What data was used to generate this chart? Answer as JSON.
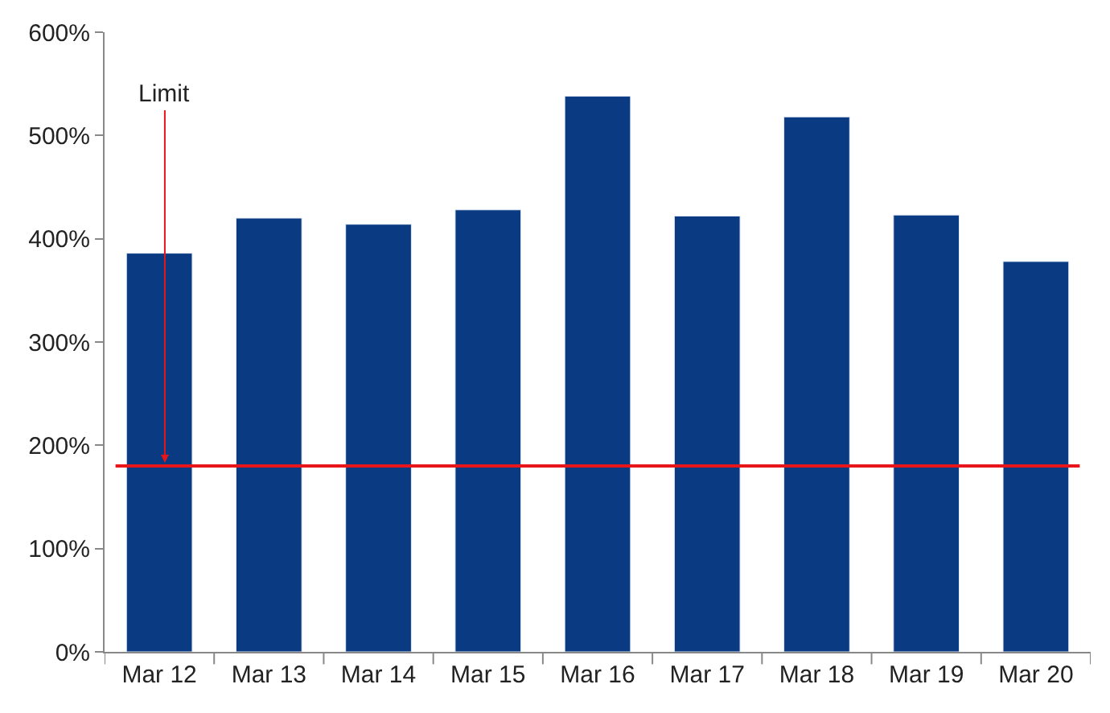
{
  "chart_data": {
    "type": "bar",
    "categories": [
      "Mar 12",
      "Mar 13",
      "Mar 14",
      "Mar 15",
      "Mar 16",
      "Mar 17",
      "Mar 18",
      "Mar 19",
      "Mar 20"
    ],
    "values": [
      386,
      420,
      414,
      428,
      538,
      422,
      518,
      423,
      378
    ],
    "color": "#0a3a82",
    "ylim": [
      0,
      600
    ],
    "yticks": [
      {
        "value": 0,
        "label": "0%"
      },
      {
        "value": 100,
        "label": "100%"
      },
      {
        "value": 200,
        "label": "200%"
      },
      {
        "value": 300,
        "label": "300%"
      },
      {
        "value": 400,
        "label": "400%"
      },
      {
        "value": 500,
        "label": "500%"
      },
      {
        "value": 600,
        "label": "600%"
      }
    ],
    "ref_lines": [
      {
        "axis": "y",
        "value": 180,
        "label": "Limit",
        "color": "#e8151b"
      }
    ],
    "legend": false
  }
}
